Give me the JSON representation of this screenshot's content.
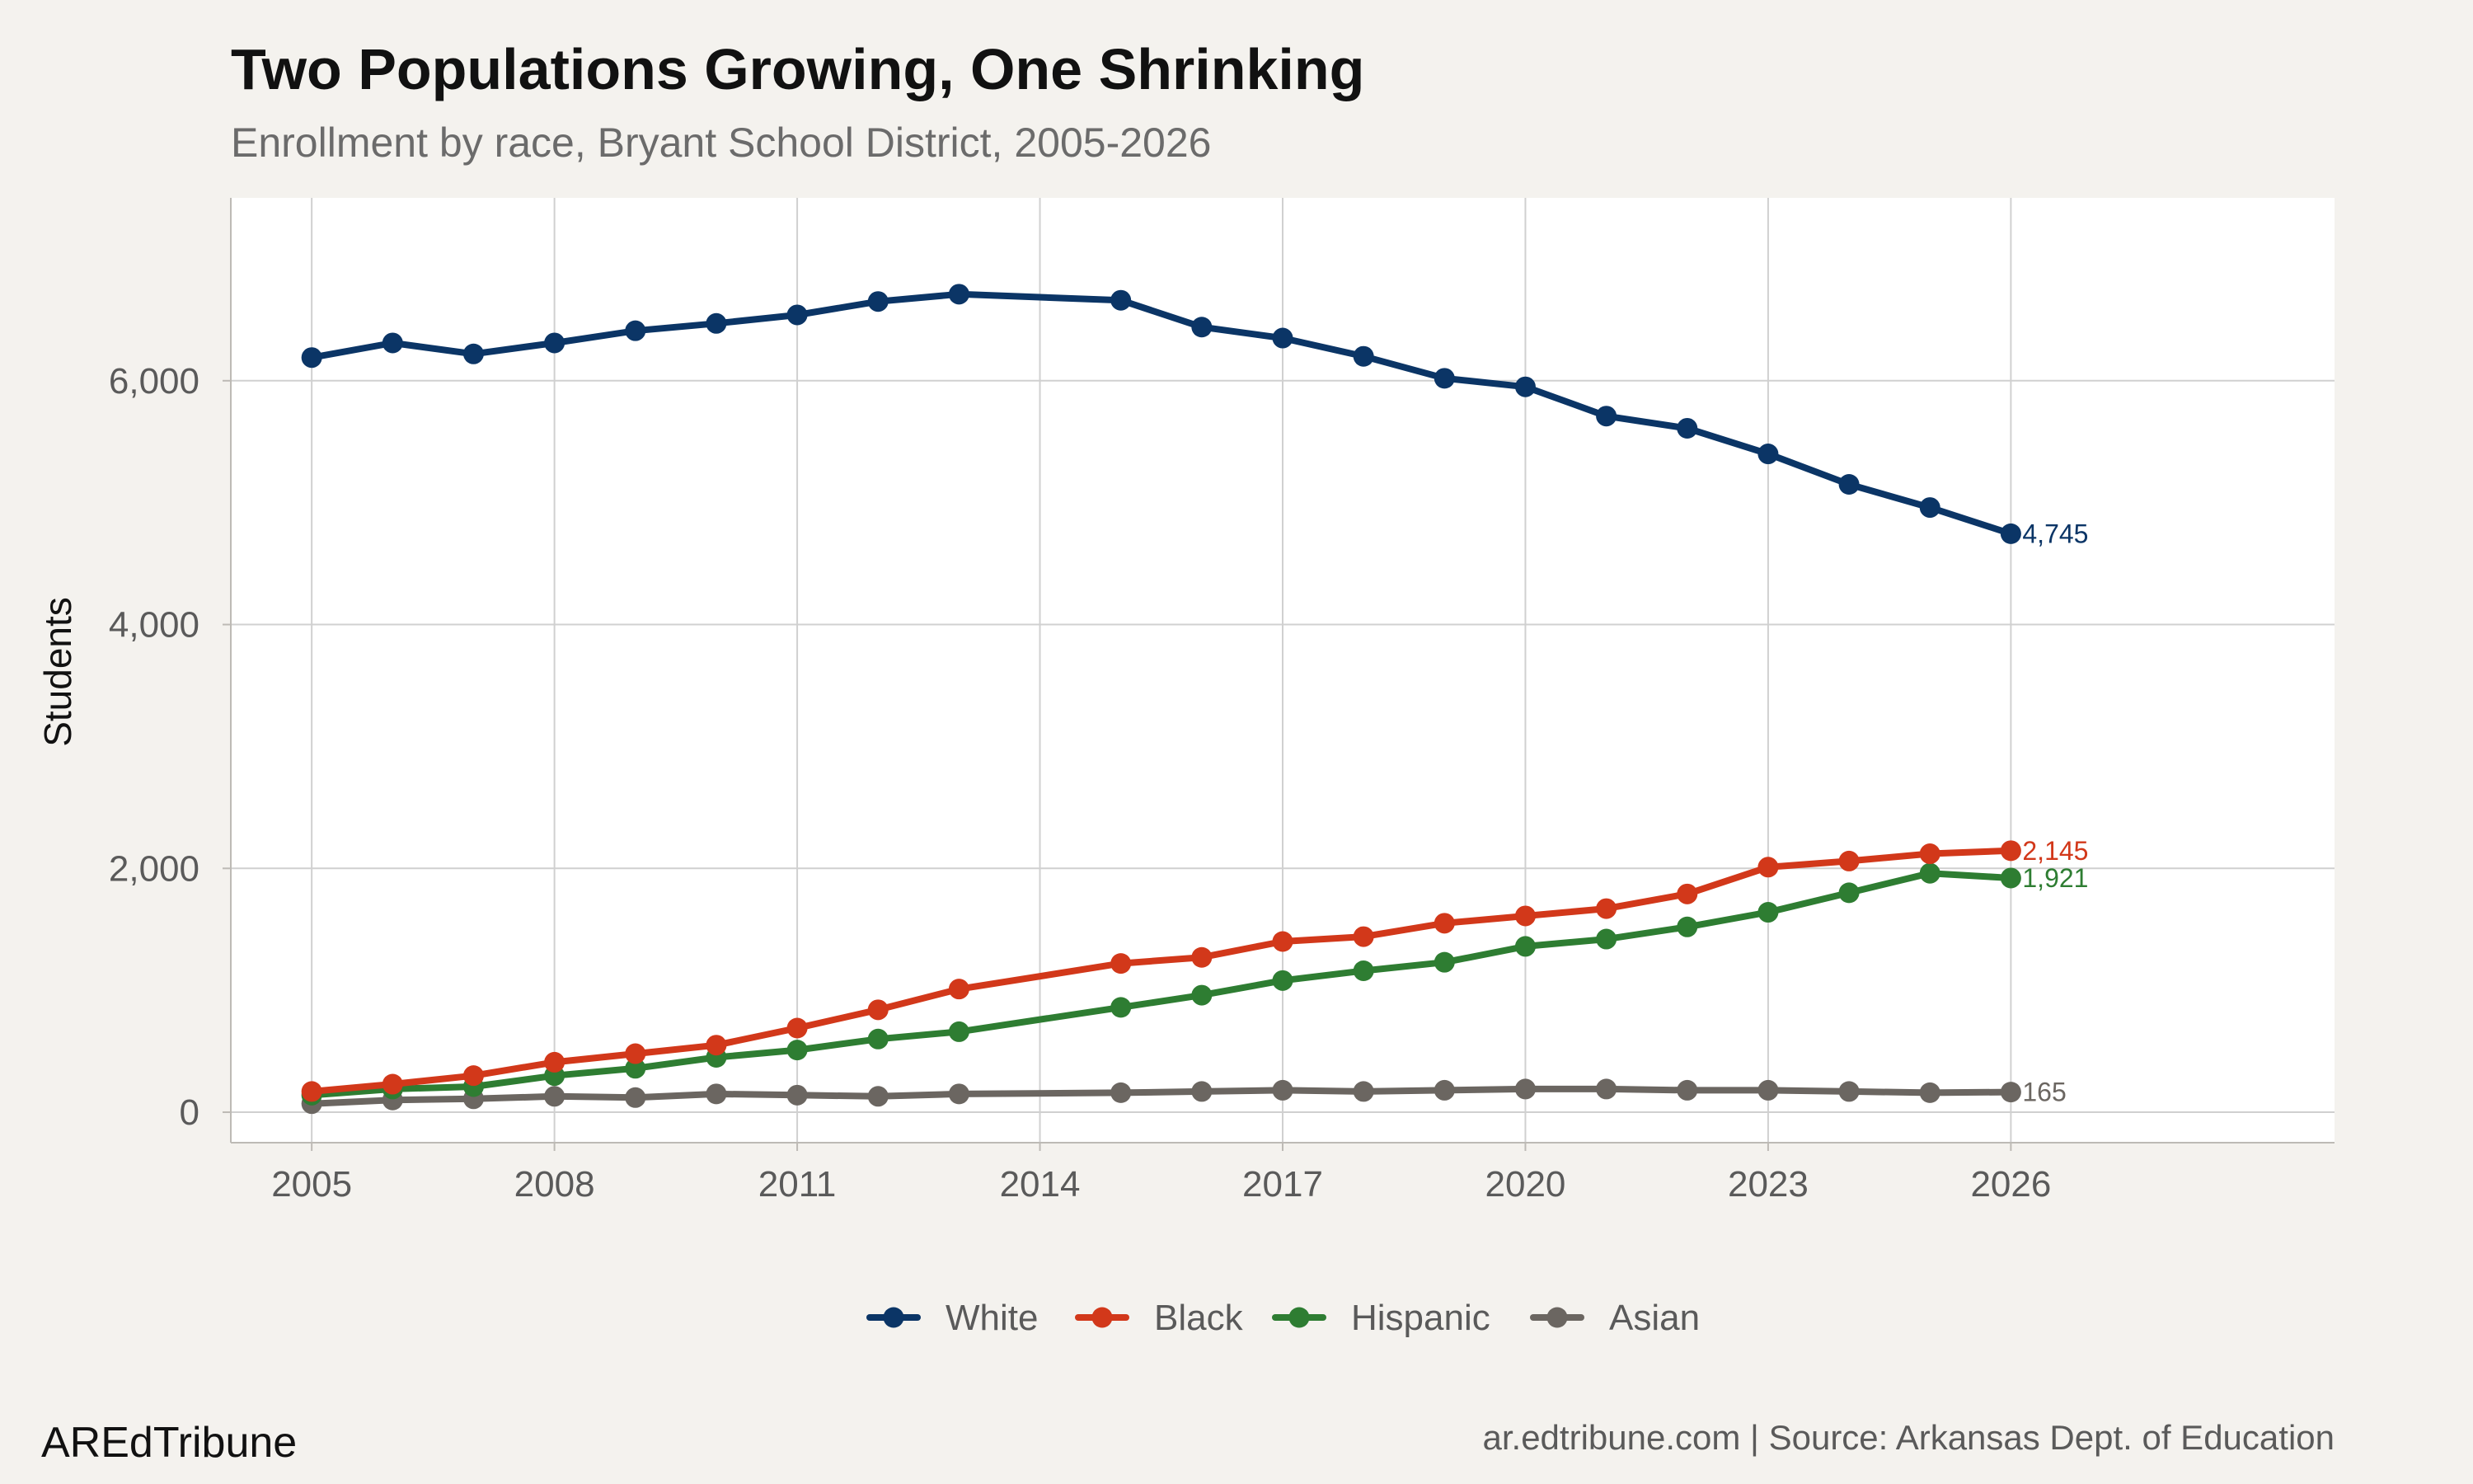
{
  "title": "Two Populations Growing, One Shrinking",
  "subtitle": "Enrollment by race, Bryant School District, 2005-2026",
  "brand": "AREdTribune",
  "source": "ar.edtribune.com | Source: Arkansas Dept. of Education",
  "colors": {
    "background": "#f4f2ee",
    "panel": "#ffffff",
    "grid": "#d0d0d0",
    "White": "#0b3566",
    "Black": "#d2381a",
    "Hispanic": "#2e7d32",
    "Asian": "#6b6661"
  },
  "chart_data": {
    "type": "line",
    "title": "Two Populations Growing, One Shrinking",
    "subtitle": "Enrollment by race, Bryant School District, 2005-2026",
    "xlabel": "",
    "ylabel": "Students",
    "xlim": [
      2004,
      2030
    ],
    "ylim": [
      -250,
      7500
    ],
    "xticks": [
      2005,
      2008,
      2011,
      2014,
      2017,
      2020,
      2023,
      2026
    ],
    "xtick_labels": [
      "2005",
      "2008",
      "2011",
      "2014",
      "2017",
      "2020",
      "2023",
      "2026"
    ],
    "yticks": [
      0,
      2000,
      4000,
      6000
    ],
    "ytick_labels": [
      "0",
      "2,000",
      "4,000",
      "6,000"
    ],
    "grid": true,
    "legend_position": "bottom",
    "series": [
      {
        "name": "White",
        "end_label": "4,745",
        "x": [
          2005,
          2006,
          2007,
          2008,
          2009,
          2010,
          2011,
          2012,
          2013,
          2015,
          2016,
          2017,
          2018,
          2019,
          2020,
          2021,
          2022,
          2023,
          2024,
          2025,
          2026
        ],
        "values": [
          6190,
          6310,
          6220,
          6310,
          6410,
          6470,
          6540,
          6650,
          6710,
          6660,
          6440,
          6350,
          6200,
          6020,
          5950,
          5710,
          5610,
          5400,
          5150,
          4960,
          4745
        ]
      },
      {
        "name": "Black",
        "end_label": "2,145",
        "x": [
          2005,
          2006,
          2007,
          2008,
          2009,
          2010,
          2011,
          2012,
          2013,
          2015,
          2016,
          2017,
          2018,
          2019,
          2020,
          2021,
          2022,
          2023,
          2024,
          2025,
          2026
        ],
        "values": [
          170,
          230,
          300,
          410,
          480,
          550,
          690,
          840,
          1010,
          1220,
          1270,
          1400,
          1440,
          1550,
          1610,
          1670,
          1790,
          2010,
          2060,
          2120,
          2145
        ]
      },
      {
        "name": "Hispanic",
        "end_label": "1,921",
        "x": [
          2005,
          2006,
          2007,
          2008,
          2009,
          2010,
          2011,
          2012,
          2013,
          2015,
          2016,
          2017,
          2018,
          2019,
          2020,
          2021,
          2022,
          2023,
          2024,
          2025,
          2026
        ],
        "values": [
          140,
          190,
          210,
          300,
          360,
          450,
          510,
          600,
          660,
          860,
          960,
          1080,
          1160,
          1230,
          1360,
          1420,
          1520,
          1640,
          1800,
          1960,
          1921
        ]
      },
      {
        "name": "Asian",
        "end_label": "165",
        "x": [
          2005,
          2006,
          2007,
          2008,
          2009,
          2010,
          2011,
          2012,
          2013,
          2015,
          2016,
          2017,
          2018,
          2019,
          2020,
          2021,
          2022,
          2023,
          2024,
          2025,
          2026
        ],
        "values": [
          70,
          100,
          110,
          130,
          120,
          150,
          140,
          130,
          150,
          160,
          170,
          180,
          170,
          180,
          190,
          190,
          180,
          180,
          170,
          160,
          165
        ]
      }
    ]
  }
}
